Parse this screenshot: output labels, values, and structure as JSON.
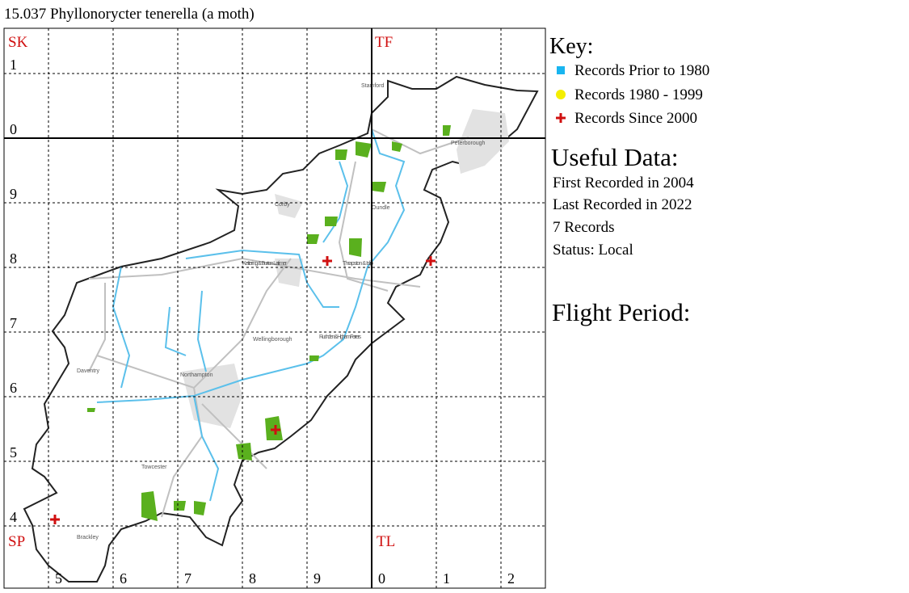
{
  "title": "15.037 Phyllonorycter tenerella (a moth)",
  "map": {
    "square_labels": {
      "nw": "SK",
      "ne": "TF",
      "sw": "SP",
      "se": "TL"
    },
    "row_labels": [
      "1",
      "0",
      "9",
      "8",
      "7",
      "6",
      "5",
      "4"
    ],
    "column_labels": [
      "5",
      "6",
      "7",
      "8",
      "9",
      "0",
      "1",
      "2"
    ],
    "towns": [
      "Stamford",
      "Peterborough",
      "Corby",
      "Oundle",
      "Kettering & Burton Latimer",
      "Thrapston & Islip",
      "Wellingborough",
      "Rushden & Higham Ferrers",
      "Daventry",
      "Northampton",
      "Towcester",
      "Brackley"
    ]
  },
  "key": {
    "title": "Key:",
    "items": [
      "Records Prior to 1980",
      "Records 1980 - 1999",
      "Records Since 2000"
    ]
  },
  "useful_data": {
    "title": "Useful Data:",
    "lines": [
      "First Recorded in 2004",
      "Last Recorded in 2022",
      "7 Records",
      "Status: Local"
    ]
  },
  "flight_period": {
    "title": "Flight Period:"
  }
}
